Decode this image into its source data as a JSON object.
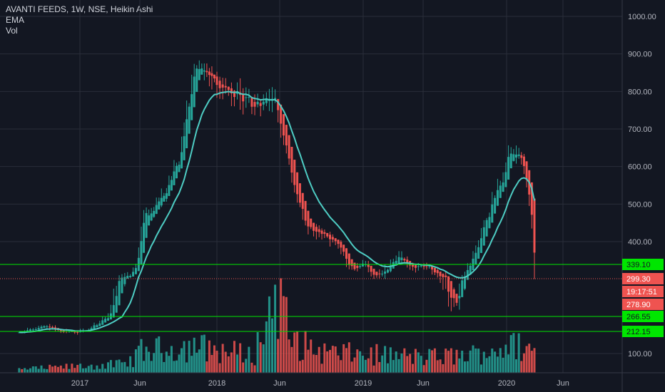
{
  "legend": {
    "symbol_line": "AVANTI FEEDS, 1W, NSE, Heikin Ashi",
    "ema_label": "EMA",
    "vol_label": "Vol"
  },
  "colors": {
    "background": "#131722",
    "grid": "#2a2e39",
    "up": "#26a69a",
    "down": "#ef5350",
    "ema": "#4ecdc4",
    "level_line": "#00e600",
    "price_line": "#ef5350",
    "axis_text": "#b2b5be"
  },
  "chart_data": {
    "type": "candlestick",
    "subtype": "Heikin Ashi",
    "y_axis": {
      "ticks": [
        1000,
        900,
        800,
        700,
        600,
        500,
        400,
        100
      ],
      "tick_labels": [
        "1000.00",
        "900.00",
        "800.00",
        "700.00",
        "600.00",
        "500.00",
        "400.00",
        "100.00"
      ],
      "position": "right"
    },
    "x_axis": {
      "ticks": [
        {
          "date": "2017-01-01",
          "label": "2017"
        },
        {
          "date": "2017-06-01",
          "label": "Jun"
        },
        {
          "date": "2018-01-01",
          "label": "2018"
        },
        {
          "date": "2018-06-01",
          "label": "Jun"
        },
        {
          "date": "2019-01-01",
          "label": "2019"
        },
        {
          "date": "2019-06-01",
          "label": "Jun"
        },
        {
          "date": "2020-01-01",
          "label": "2020"
        },
        {
          "date": "2020-06-01",
          "label": "Jun"
        }
      ]
    },
    "horizontal_levels": [
      {
        "value": 339.1,
        "label": "339.10",
        "style": "solid"
      },
      {
        "value": 266.55,
        "label": "266.55",
        "style": "solid"
      },
      {
        "value": 212.15,
        "label": "212.15",
        "style": "solid"
      }
    ],
    "price_tags": [
      {
        "value": 299.3,
        "label": "299.30",
        "kind": "last-price"
      },
      {
        "value": 278.9,
        "label": "19:17:51",
        "kind": "countdown"
      },
      {
        "value": 278.9,
        "label": "278.90",
        "kind": "price"
      }
    ],
    "price_anchors": [
      {
        "date": "2016-08-01",
        "value": 205
      },
      {
        "date": "2016-10-01",
        "value": 230
      },
      {
        "date": "2016-12-15",
        "value": 205
      },
      {
        "date": "2017-02-01",
        "value": 225
      },
      {
        "date": "2017-04-01",
        "value": 290
      },
      {
        "date": "2017-05-20",
        "value": 320
      },
      {
        "date": "2017-06-10",
        "value": 460
      },
      {
        "date": "2017-08-01",
        "value": 520
      },
      {
        "date": "2017-09-15",
        "value": 610
      },
      {
        "date": "2017-11-01",
        "value": 880
      },
      {
        "date": "2017-11-25",
        "value": 850
      },
      {
        "date": "2018-01-15",
        "value": 810
      },
      {
        "date": "2018-04-01",
        "value": 760
      },
      {
        "date": "2018-05-10",
        "value": 780
      },
      {
        "date": "2018-06-01",
        "value": 720
      },
      {
        "date": "2018-07-01",
        "value": 560
      },
      {
        "date": "2018-08-15",
        "value": 430
      },
      {
        "date": "2018-10-15",
        "value": 410
      },
      {
        "date": "2018-11-25",
        "value": 330
      },
      {
        "date": "2019-01-01",
        "value": 340
      },
      {
        "date": "2019-02-01",
        "value": 300
      },
      {
        "date": "2019-03-01",
        "value": 330
      },
      {
        "date": "2019-04-01",
        "value": 360
      },
      {
        "date": "2019-05-15",
        "value": 330
      },
      {
        "date": "2019-06-15",
        "value": 330
      },
      {
        "date": "2019-08-20",
        "value": 280
      },
      {
        "date": "2019-10-01",
        "value": 340
      },
      {
        "date": "2019-11-15",
        "value": 480
      },
      {
        "date": "2019-12-15",
        "value": 550
      },
      {
        "date": "2020-01-10",
        "value": 640
      },
      {
        "date": "2020-02-10",
        "value": 620
      },
      {
        "date": "2020-03-05",
        "value": 480
      },
      {
        "date": "2020-03-20",
        "value": 299.3
      }
    ],
    "volume_anchors": [
      {
        "date": "2016-08-01",
        "value": 8
      },
      {
        "date": "2017-05-01",
        "value": 20
      },
      {
        "date": "2017-06-01",
        "value": 48
      },
      {
        "date": "2017-11-01",
        "value": 60
      },
      {
        "date": "2018-04-01",
        "value": 40
      },
      {
        "date": "2018-05-25",
        "value": 190
      },
      {
        "date": "2018-07-01",
        "value": 70
      },
      {
        "date": "2018-10-01",
        "value": 45
      },
      {
        "date": "2019-03-01",
        "value": 40
      },
      {
        "date": "2019-06-01",
        "value": 35
      },
      {
        "date": "2019-10-01",
        "value": 40
      },
      {
        "date": "2019-12-01",
        "value": 55
      },
      {
        "date": "2020-02-01",
        "value": 60
      },
      {
        "date": "2020-03-20",
        "value": 50
      }
    ]
  }
}
